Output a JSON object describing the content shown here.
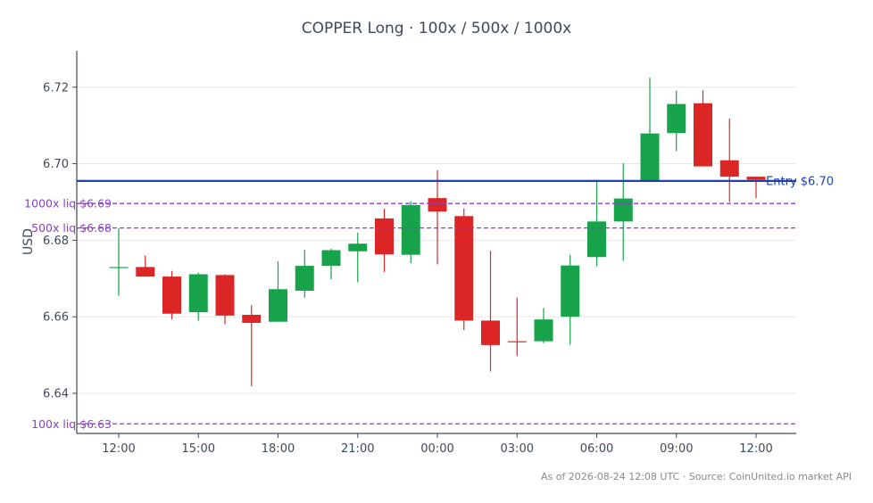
{
  "title": "COPPER Long · 100x / 500x / 1000x",
  "footer": "As of 2026-08-24 12:08 UTC · Source: CoinUnited.io market API",
  "colors": {
    "up": "#16a34a",
    "down": "#dc2626",
    "entry": "#1e40af",
    "liq": "#8b3fc9",
    "axis": "#3f4a57",
    "text": "#3f4a57",
    "grid": "#e8e8ec",
    "footer": "#8a8a8a"
  },
  "chart_data": {
    "type": "candlestick",
    "ylabel": "USD",
    "xlabel": "",
    "ylim": [
      6.6295,
      6.7295
    ],
    "grid": "horizontal",
    "yticks": [
      {
        "value": 6.64,
        "label": "6.64"
      },
      {
        "value": 6.66,
        "label": "6.66"
      },
      {
        "value": 6.68,
        "label": "6.68"
      },
      {
        "value": 6.7,
        "label": "6.70"
      },
      {
        "value": 6.72,
        "label": "6.72"
      }
    ],
    "xticks": [
      {
        "index": 0,
        "label": "12:00"
      },
      {
        "index": 3,
        "label": "15:00"
      },
      {
        "index": 6,
        "label": "18:00"
      },
      {
        "index": 9,
        "label": "21:00"
      },
      {
        "index": 12,
        "label": "00:00"
      },
      {
        "index": 15,
        "label": "03:00"
      },
      {
        "index": 18,
        "label": "06:00"
      },
      {
        "index": 21,
        "label": "09:00"
      },
      {
        "index": 24,
        "label": "12:00"
      }
    ],
    "candles": [
      {
        "time": "12:00",
        "open": 6.6729,
        "high": 6.6831,
        "low": 6.6655,
        "close": 6.673
      },
      {
        "time": "13:00",
        "open": 6.673,
        "high": 6.676,
        "low": 6.6705,
        "close": 6.6705
      },
      {
        "time": "14:00",
        "open": 6.6705,
        "high": 6.672,
        "low": 6.6593,
        "close": 6.6608
      },
      {
        "time": "15:00",
        "open": 6.6612,
        "high": 6.6715,
        "low": 6.659,
        "close": 6.6711
      },
      {
        "time": "16:00",
        "open": 6.6709,
        "high": 6.6711,
        "low": 6.6581,
        "close": 6.6603
      },
      {
        "time": "17:00",
        "open": 6.6605,
        "high": 6.663,
        "low": 6.6418,
        "close": 6.6584
      },
      {
        "time": "18:00",
        "open": 6.6587,
        "high": 6.6745,
        "low": 6.6587,
        "close": 6.6672
      },
      {
        "time": "19:00",
        "open": 6.6668,
        "high": 6.6775,
        "low": 6.665,
        "close": 6.6733
      },
      {
        "time": "20:00",
        "open": 6.6733,
        "high": 6.6778,
        "low": 6.6698,
        "close": 6.6774
      },
      {
        "time": "21:00",
        "open": 6.6771,
        "high": 6.682,
        "low": 6.669,
        "close": 6.6791
      },
      {
        "time": "22:00",
        "open": 6.6857,
        "high": 6.6882,
        "low": 6.6717,
        "close": 6.6763
      },
      {
        "time": "23:00",
        "open": 6.6762,
        "high": 6.6902,
        "low": 6.674,
        "close": 6.6892
      },
      {
        "time": "00:00",
        "open": 6.691,
        "high": 6.6983,
        "low": 6.6737,
        "close": 6.6875
      },
      {
        "time": "01:00",
        "open": 6.6863,
        "high": 6.6883,
        "low": 6.6565,
        "close": 6.659
      },
      {
        "time": "02:00",
        "open": 6.659,
        "high": 6.6772,
        "low": 6.6457,
        "close": 6.6526
      },
      {
        "time": "03:00",
        "open": 6.6536,
        "high": 6.665,
        "low": 6.6497,
        "close": 6.6534
      },
      {
        "time": "04:00",
        "open": 6.6536,
        "high": 6.6623,
        "low": 6.6531,
        "close": 6.6593
      },
      {
        "time": "05:00",
        "open": 6.66,
        "high": 6.6762,
        "low": 6.6527,
        "close": 6.6734
      },
      {
        "time": "06:00",
        "open": 6.6756,
        "high": 6.6958,
        "low": 6.6732,
        "close": 6.6849
      },
      {
        "time": "07:00",
        "open": 6.6849,
        "high": 6.7001,
        "low": 6.6746,
        "close": 6.6909
      },
      {
        "time": "08:00",
        "open": 6.6957,
        "high": 6.7225,
        "low": 6.6957,
        "close": 6.7079
      },
      {
        "time": "09:00",
        "open": 6.708,
        "high": 6.7191,
        "low": 6.7033,
        "close": 6.7156
      },
      {
        "time": "10:00",
        "open": 6.7158,
        "high": 6.7192,
        "low": 6.6993,
        "close": 6.6993
      },
      {
        "time": "11:00",
        "open": 6.7009,
        "high": 6.7118,
        "low": 6.69,
        "close": 6.6966
      },
      {
        "time": "12:00",
        "open": 6.6966,
        "high": 6.6966,
        "low": 6.691,
        "close": 6.6958
      }
    ],
    "lines": [
      {
        "name": "entry",
        "label": "Entry $6.70",
        "value": 6.6955,
        "style": "solid",
        "label_side": "right"
      },
      {
        "name": "liq-1000x",
        "label": "1000x liq $6.69",
        "value": 6.6896,
        "style": "dashed",
        "label_side": "left"
      },
      {
        "name": "liq-500x",
        "label": "500x liq $6.68",
        "value": 6.6832,
        "style": "dashed",
        "label_side": "left"
      },
      {
        "name": "liq-100x",
        "label": "100x liq $6.63",
        "value": 6.632,
        "style": "dashed",
        "label_side": "left"
      }
    ]
  }
}
